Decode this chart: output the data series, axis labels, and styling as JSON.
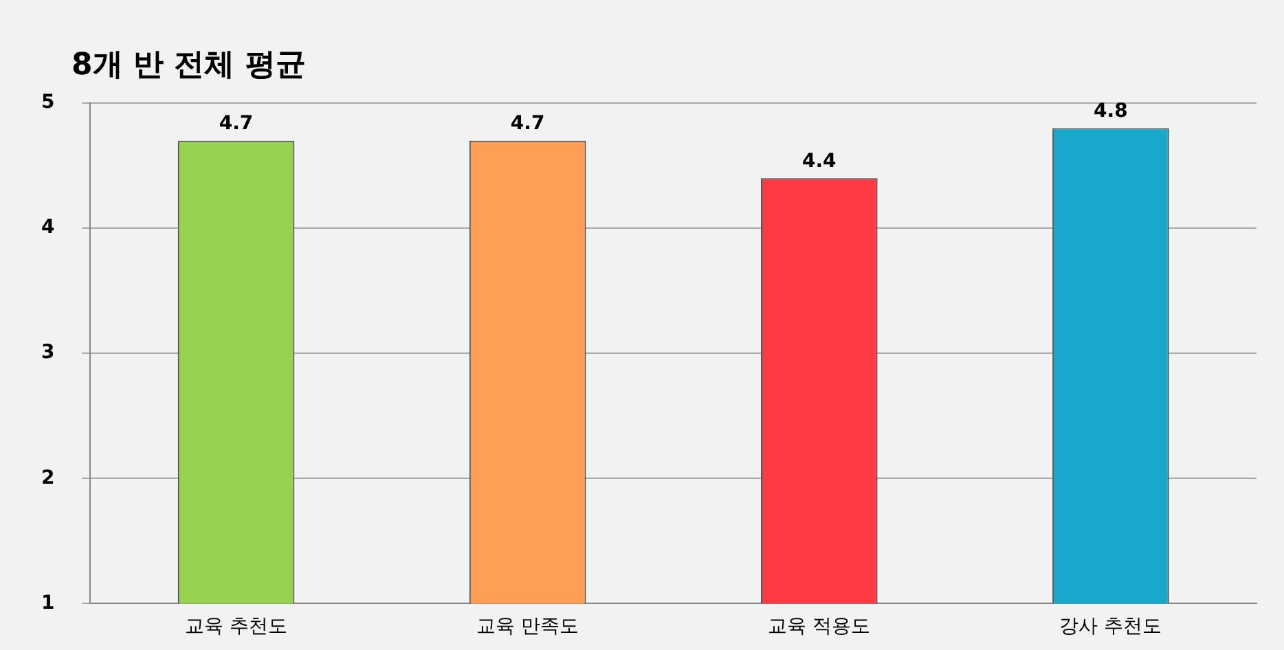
{
  "chart_data": {
    "type": "bar",
    "title": "8개 반 전체 평균",
    "categories": [
      "교육 추천도",
      "교육 만족도",
      "교육 적용도",
      "강사 추천도"
    ],
    "values": [
      4.7,
      4.7,
      4.4,
      4.8
    ],
    "colors": [
      "#96d350",
      "#ff9f55",
      "#ff3a45",
      "#17a8cc"
    ],
    "ylim": [
      1,
      5
    ],
    "yticks": [
      1,
      2,
      3,
      4,
      5
    ],
    "grid": "y",
    "data_labels": true
  }
}
